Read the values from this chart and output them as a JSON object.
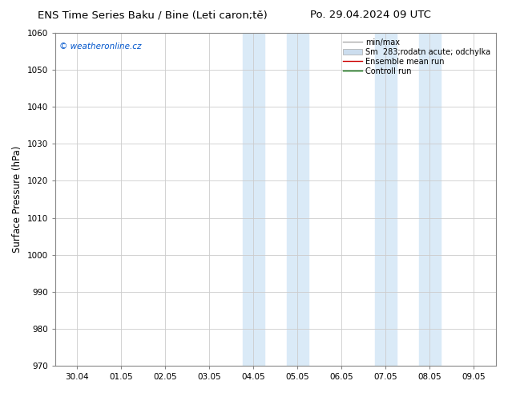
{
  "title": "ENS Time Series Baku / Bine (Leti caron;tě)",
  "title_right": "Po. 29.04.2024 09 UTC",
  "ylabel": "Surface Pressure (hPa)",
  "ylim": [
    970,
    1060
  ],
  "yticks": [
    970,
    980,
    990,
    1000,
    1010,
    1020,
    1030,
    1040,
    1050,
    1060
  ],
  "xtick_labels": [
    "30.04",
    "01.05",
    "02.05",
    "03.05",
    "04.05",
    "05.05",
    "06.05",
    "07.05",
    "08.05",
    "09.05"
  ],
  "shade_color": "#daeaf7",
  "shaded_regions": [
    {
      "xstart": 3.75,
      "xend": 4.25
    },
    {
      "xstart": 4.75,
      "xend": 5.25
    },
    {
      "xstart": 6.75,
      "xend": 7.25
    },
    {
      "xstart": 7.75,
      "xend": 8.25
    }
  ],
  "watermark_text": "© weatheronline.cz",
  "watermark_color": "#0055cc",
  "legend_items": [
    {
      "label": "min/max",
      "color": "#aaaaaa",
      "lw": 1.0,
      "type": "line"
    },
    {
      "label": "Sm  283;rodatn acute; odchylka",
      "color": "#ccddee",
      "type": "patch"
    },
    {
      "label": "Ensemble mean run",
      "color": "#cc0000",
      "lw": 1.0,
      "type": "line"
    },
    {
      "label": "Controll run",
      "color": "#006600",
      "lw": 1.0,
      "type": "line"
    }
  ],
  "bg_color": "#ffffff",
  "grid_color": "#cccccc",
  "spine_color": "#888888",
  "title_fontsize": 9.5,
  "tick_fontsize": 7.5,
  "ylabel_fontsize": 8.5,
  "watermark_fontsize": 7.5,
  "legend_fontsize": 7
}
